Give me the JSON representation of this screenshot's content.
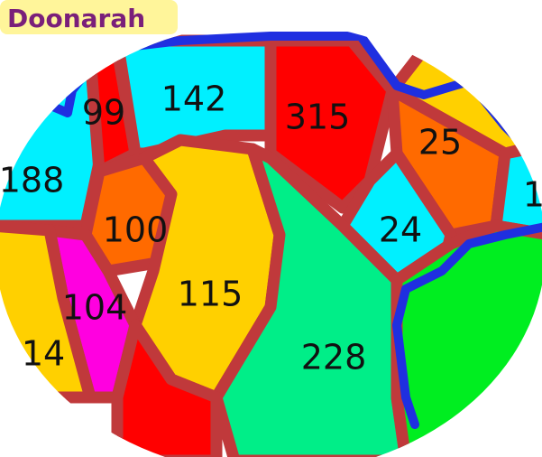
{
  "header": {
    "title": "Doonarah"
  },
  "regions": [
    {
      "label": "99"
    },
    {
      "label": "142"
    },
    {
      "label": "315"
    },
    {
      "label": "25"
    },
    {
      "label": "188"
    },
    {
      "label": "100"
    },
    {
      "label": "24"
    },
    {
      "label": "104"
    },
    {
      "label": "115"
    },
    {
      "label": "228"
    },
    {
      "label": "1"
    },
    {
      "label": "14"
    }
  ]
}
